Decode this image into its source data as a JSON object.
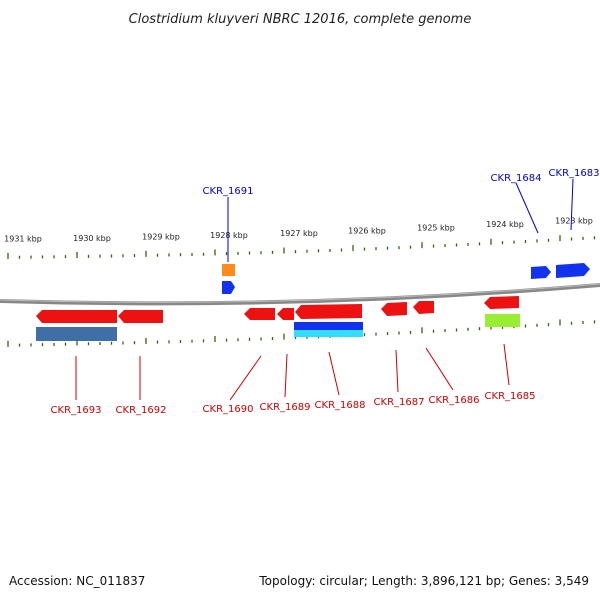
{
  "title": "Clostridium kluyveri NBRC 12016, complete genome",
  "footer": {
    "accession": "Accession: NC_011837",
    "summary": "Topology: circular; Length: 3,896,121 bp; Genes: 3,549"
  },
  "scale_ticks": [
    "1931 kbp",
    "1930 kbp",
    "1929 kbp",
    "1928 kbp",
    "1927 kbp",
    "1926 kbp",
    "1925 kbp",
    "1924 kbp",
    "1923 kbp"
  ],
  "genes_top": [
    {
      "name": "CKR_1691",
      "color": "#0000cc"
    },
    {
      "name": "CKR_1684",
      "color": "#0000cc"
    },
    {
      "name": "CKR_1683",
      "color": "#0000cc"
    }
  ],
  "genes_bottom": [
    {
      "name": "CKR_1693",
      "color": "#cc0000"
    },
    {
      "name": "CKR_1692",
      "color": "#cc0000"
    },
    {
      "name": "CKR_1690",
      "color": "#cc0000"
    },
    {
      "name": "CKR_1689",
      "color": "#cc0000"
    },
    {
      "name": "CKR_1688",
      "color": "#cc0000"
    },
    {
      "name": "CKR_1687",
      "color": "#cc0000"
    },
    {
      "name": "CKR_1686",
      "color": "#cc0000"
    },
    {
      "name": "CKR_1685",
      "color": "#cc0000"
    }
  ],
  "colors": {
    "gene_red": "#ee1111",
    "gene_blue": "#1133ee",
    "backbone": "#888888",
    "tick_green": "#336600"
  }
}
